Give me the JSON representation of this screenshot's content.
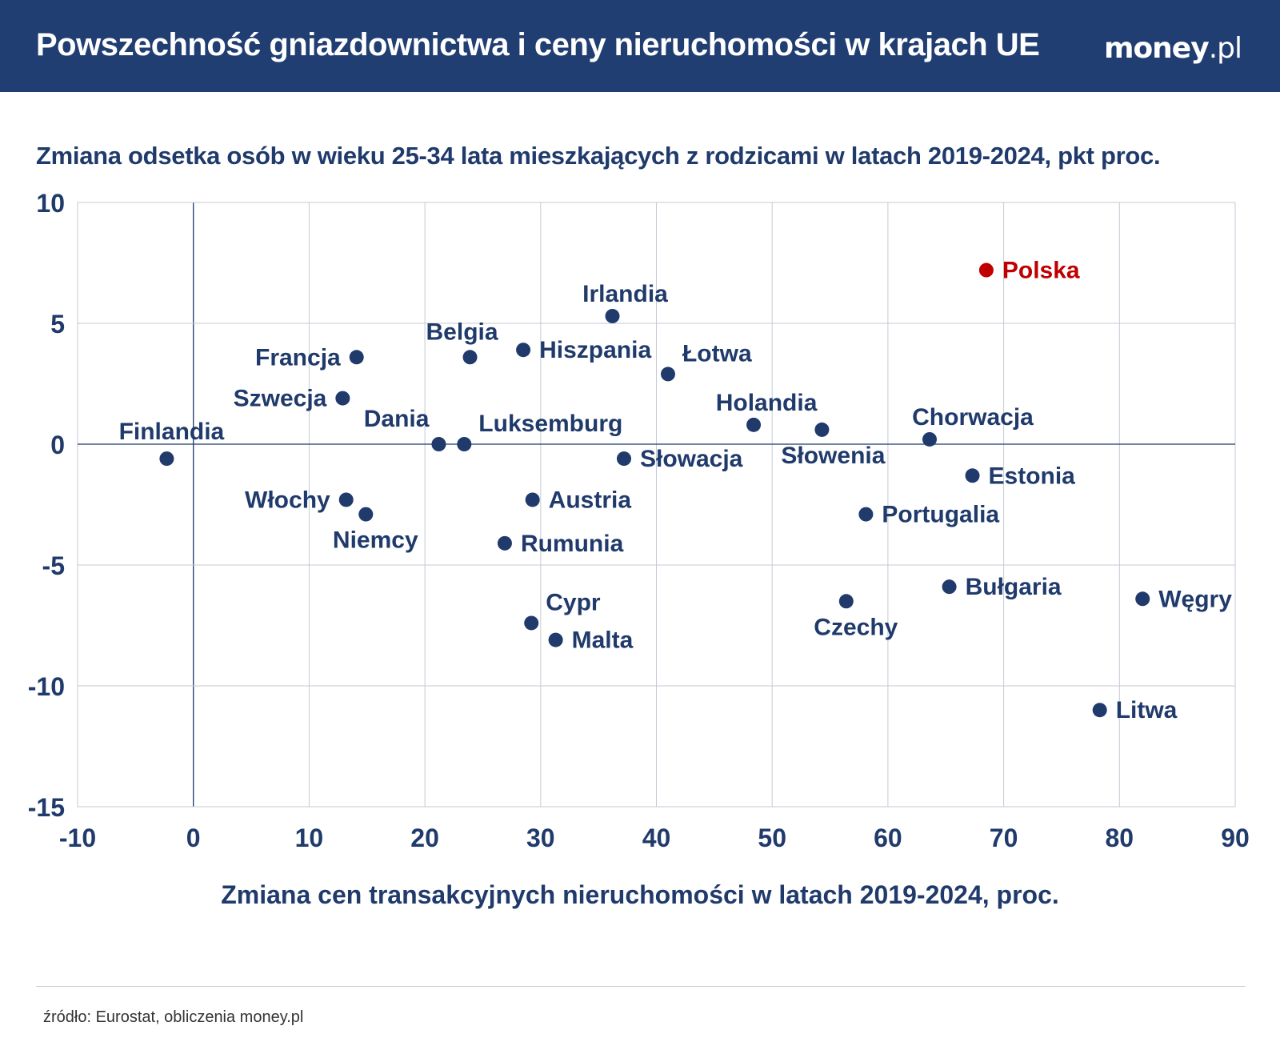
{
  "header": {
    "title": "Powszechność gniazdownictwa i ceny nieruchomości w krajach UE",
    "logo_main": "money",
    "logo_suffix": ".pl"
  },
  "colors": {
    "header_bg": "#213e72",
    "point": "#1f3a6b",
    "highlight": "#c00000",
    "grid": "#c4cad6"
  },
  "source": "źródło: Eurostat, obliczenia money.pl",
  "chart_data": {
    "type": "scatter",
    "title": "Zmiana odsetka osób w wieku 25-34 lata mieszkających z rodzicami w latach 2019-2024, pkt proc.",
    "xlabel": "Zmiana cen transakcyjnych nieruchomości w latach 2019-2024, proc.",
    "ylabel": "",
    "xlim": [
      -10,
      90
    ],
    "ylim": [
      -15,
      10
    ],
    "xticks": [
      -10,
      0,
      10,
      20,
      30,
      40,
      50,
      60,
      70,
      80,
      90
    ],
    "yticks": [
      10,
      5,
      0,
      -5,
      -10,
      -15
    ],
    "grid": true,
    "highlight": "Polska",
    "points": [
      {
        "label": "Polska",
        "x": 68.5,
        "y": 7.2,
        "pos": "right"
      },
      {
        "label": "Irlandia",
        "x": 36.2,
        "y": 5.3,
        "pos": "above"
      },
      {
        "label": "Belgia",
        "x": 23.9,
        "y": 3.6,
        "pos": "aboveleft"
      },
      {
        "label": "Hiszpania",
        "x": 28.5,
        "y": 3.9,
        "pos": "right"
      },
      {
        "label": "Francja",
        "x": 14.1,
        "y": 3.6,
        "pos": "left"
      },
      {
        "label": "Łotwa",
        "x": 41.0,
        "y": 2.9,
        "pos": "aboveright"
      },
      {
        "label": "Szwecja",
        "x": 12.9,
        "y": 1.9,
        "pos": "left"
      },
      {
        "label": "Holandia",
        "x": 48.4,
        "y": 0.8,
        "pos": "above"
      },
      {
        "label": "Słowenia",
        "x": 54.3,
        "y": 0.6,
        "pos": "below"
      },
      {
        "label": "Chorwacja",
        "x": 63.6,
        "y": 0.2,
        "pos": "aboveright"
      },
      {
        "label": "Finlandia",
        "x": -2.3,
        "y": -0.6,
        "pos": "aboveright"
      },
      {
        "label": "Dania",
        "x": 21.2,
        "y": 0.0,
        "pos": "aboveleft"
      },
      {
        "label": "Luksemburg",
        "x": 23.4,
        "y": 0.0,
        "pos": "aboveright"
      },
      {
        "label": "Słowacja",
        "x": 37.2,
        "y": -0.6,
        "pos": "right"
      },
      {
        "label": "Estonia",
        "x": 67.3,
        "y": -1.3,
        "pos": "right"
      },
      {
        "label": "Włochy",
        "x": 13.2,
        "y": -2.3,
        "pos": "left"
      },
      {
        "label": "Niemcy",
        "x": 14.9,
        "y": -2.9,
        "pos": "below"
      },
      {
        "label": "Austria",
        "x": 29.3,
        "y": -2.3,
        "pos": "right"
      },
      {
        "label": "Portugalia",
        "x": 58.1,
        "y": -2.9,
        "pos": "right"
      },
      {
        "label": "Rumunia",
        "x": 26.9,
        "y": -4.1,
        "pos": "right"
      },
      {
        "label": "Bułgaria",
        "x": 65.3,
        "y": -5.9,
        "pos": "right"
      },
      {
        "label": "Czechy",
        "x": 56.4,
        "y": -6.5,
        "pos": "below"
      },
      {
        "label": "Węgry",
        "x": 82.0,
        "y": -6.4,
        "pos": "right"
      },
      {
        "label": "Cypr",
        "x": 29.2,
        "y": -7.4,
        "pos": "aboveright"
      },
      {
        "label": "Malta",
        "x": 31.3,
        "y": -8.1,
        "pos": "right"
      },
      {
        "label": "Litwa",
        "x": 78.3,
        "y": -11.0,
        "pos": "right"
      }
    ]
  }
}
